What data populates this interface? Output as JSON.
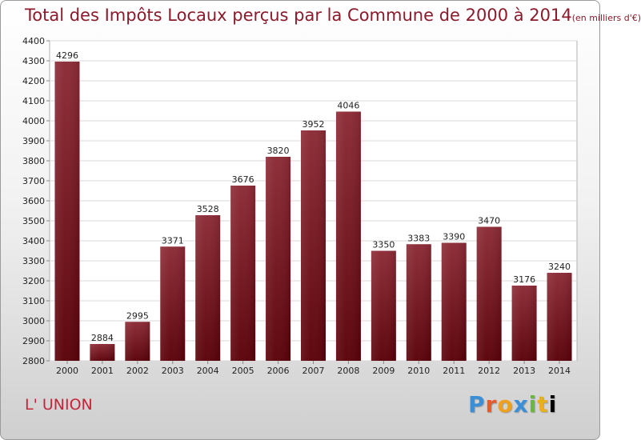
{
  "title": {
    "main": "Total des Impôts Locaux perçus par la Commune de 2000 à 2014",
    "unit": "(en milliers d'€)"
  },
  "commune": "L' UNION",
  "logo": {
    "text": "Proxiti",
    "letters": [
      "P",
      "r",
      "o",
      "x",
      "i",
      "t",
      "i"
    ]
  },
  "chart_data": {
    "type": "bar",
    "title": "Total des Impôts Locaux perçus par la Commune de 2000 à 2014 (en milliers d'€)",
    "categories": [
      "2000",
      "2001",
      "2002",
      "2003",
      "2004",
      "2005",
      "2006",
      "2007",
      "2008",
      "2009",
      "2010",
      "2011",
      "2012",
      "2013",
      "2014"
    ],
    "values": [
      4296,
      2884,
      2995,
      3371,
      3528,
      3676,
      3820,
      3952,
      4046,
      3350,
      3383,
      3390,
      3470,
      3176,
      3240
    ],
    "ylim": [
      2800,
      4400
    ],
    "yticks": [
      2800,
      2900,
      3000,
      3100,
      3200,
      3300,
      3400,
      3500,
      3600,
      3700,
      3800,
      3900,
      4000,
      4100,
      4200,
      4300,
      4400
    ],
    "grid": true,
    "bar_color_top": "#8c2a35",
    "bar_color_bottom": "#5a0008"
  }
}
